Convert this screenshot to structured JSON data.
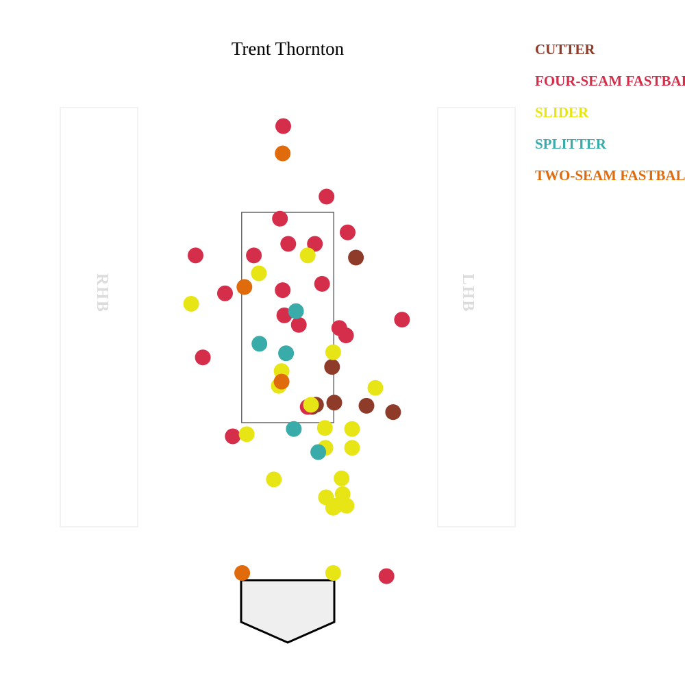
{
  "chart_data": {
    "type": "scatter",
    "title": "Trent Thornton",
    "xlabel": "",
    "ylabel": "",
    "xlim": [
      -3.0,
      3.0
    ],
    "ylim": [
      -0.5,
      5.5
    ],
    "batter_sides": {
      "left_box": "RHB",
      "right_box": "LHB"
    },
    "strike_zone": {
      "x": [
        -0.83,
        0.83
      ],
      "y": [
        1.5,
        3.5
      ]
    },
    "series": [
      {
        "name": "CUTTER",
        "color": "#8e3b2a",
        "points": [
          [
            1.23,
            3.07
          ],
          [
            0.8,
            2.03
          ],
          [
            0.84,
            1.69
          ],
          [
            0.44,
            1.65
          ],
          [
            0.51,
            1.67
          ],
          [
            1.42,
            1.66
          ],
          [
            1.9,
            1.6
          ]
        ]
      },
      {
        "name": "FOUR-SEAM FASTBALL",
        "color": "#d42e4b",
        "points": [
          [
            -0.08,
            4.32
          ],
          [
            0.7,
            3.65
          ],
          [
            -0.14,
            3.44
          ],
          [
            1.08,
            3.31
          ],
          [
            0.01,
            3.2
          ],
          [
            0.49,
            3.2
          ],
          [
            -1.66,
            3.09
          ],
          [
            -0.61,
            3.09
          ],
          [
            -1.13,
            2.73
          ],
          [
            -0.09,
            2.76
          ],
          [
            0.62,
            2.82
          ],
          [
            -0.06,
            2.52
          ],
          [
            2.06,
            2.48
          ],
          [
            0.2,
            2.43
          ],
          [
            0.93,
            2.4
          ],
          [
            1.05,
            2.33
          ],
          [
            -1.53,
            2.12
          ],
          [
            0.36,
            1.65
          ],
          [
            -0.99,
            1.37
          ],
          [
            1.78,
            0.04
          ]
        ]
      },
      {
        "name": "SLIDER",
        "color": "#e8e516",
        "points": [
          [
            0.36,
            3.09
          ],
          [
            -0.52,
            2.92
          ],
          [
            -1.74,
            2.63
          ],
          [
            0.82,
            2.17
          ],
          [
            -0.11,
            1.99
          ],
          [
            -0.16,
            1.85
          ],
          [
            1.58,
            1.83
          ],
          [
            0.42,
            1.67
          ],
          [
            0.67,
            1.45
          ],
          [
            1.16,
            1.44
          ],
          [
            -0.74,
            1.39
          ],
          [
            0.68,
            1.26
          ],
          [
            1.16,
            1.26
          ],
          [
            0.97,
            0.97
          ],
          [
            -0.25,
            0.96
          ],
          [
            0.99,
            0.82
          ],
          [
            0.69,
            0.79
          ],
          [
            0.87,
            0.71
          ],
          [
            1.06,
            0.71
          ],
          [
            0.82,
            0.69
          ],
          [
            0.82,
            0.07
          ]
        ]
      },
      {
        "name": "SPLITTER",
        "color": "#39aba9",
        "points": [
          [
            0.15,
            2.56
          ],
          [
            -0.51,
            2.25
          ],
          [
            -0.03,
            2.16
          ],
          [
            0.11,
            1.44
          ],
          [
            0.55,
            1.22
          ]
        ]
      },
      {
        "name": "TWO-SEAM FASTBALL",
        "color": "#e06b0c",
        "points": [
          [
            -0.09,
            4.06
          ],
          [
            -0.78,
            2.79
          ],
          [
            -0.11,
            1.89
          ],
          [
            -0.82,
            0.07
          ]
        ]
      }
    ]
  }
}
